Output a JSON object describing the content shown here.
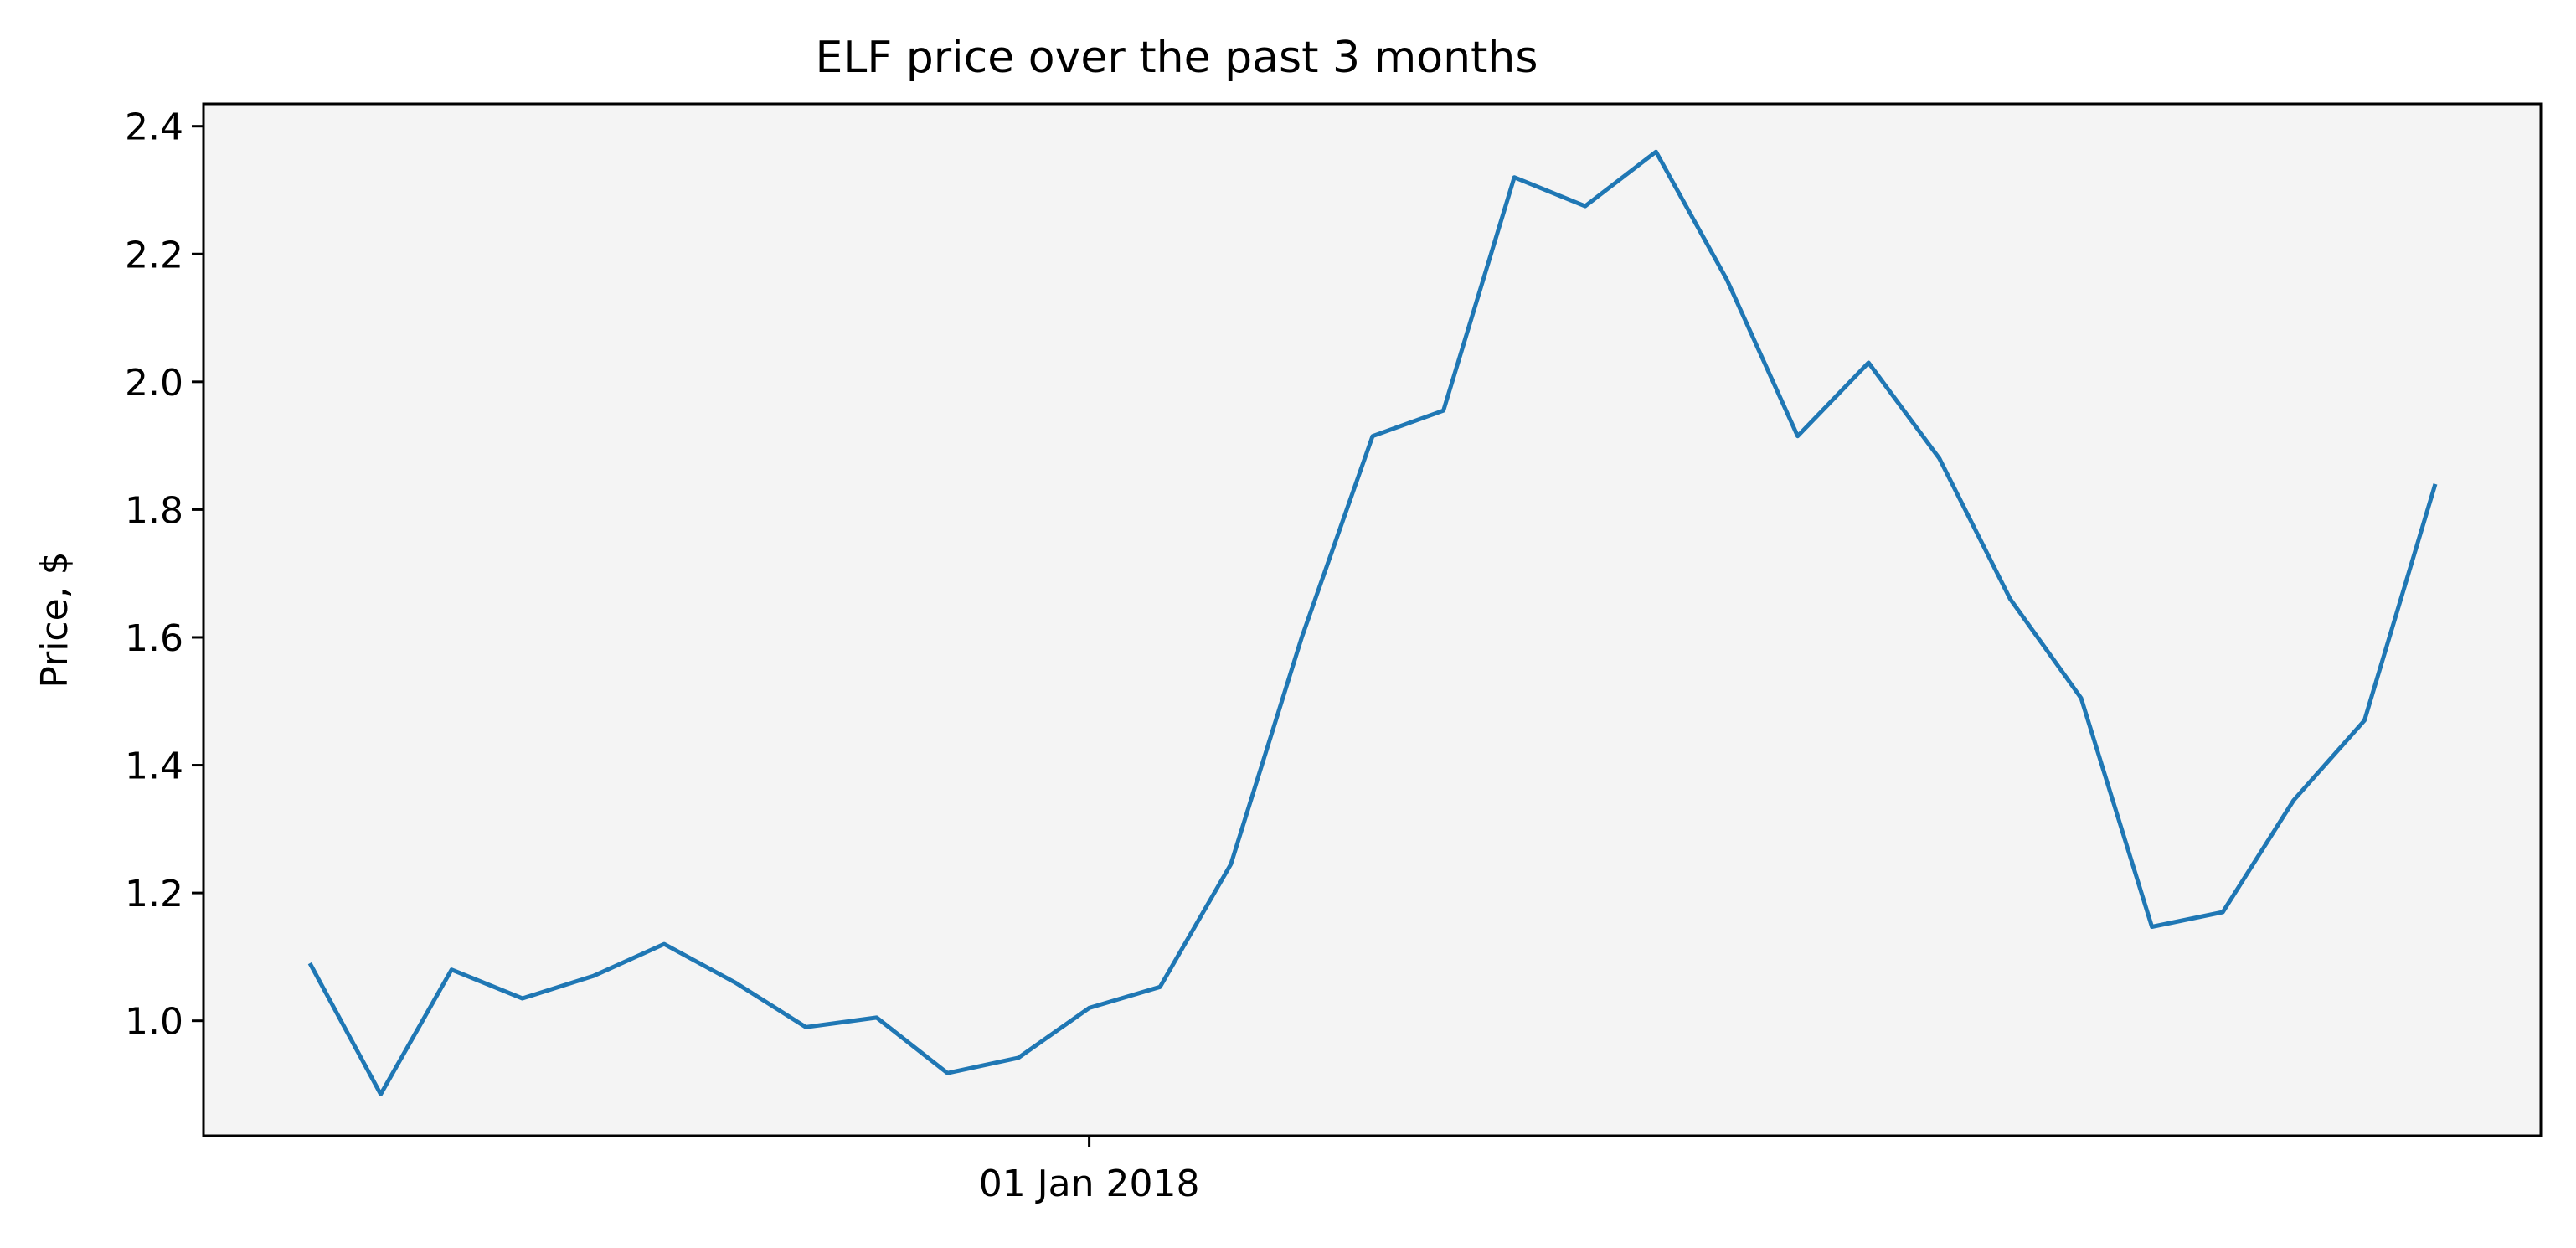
{
  "chart_data": {
    "type": "line",
    "title": "ELF price over the past 3 months",
    "xlabel": "",
    "ylabel": "Price, $",
    "x_ticks": [
      {
        "label": "01 Jan 2018",
        "index": 11
      }
    ],
    "y_ticks": [
      1.0,
      1.2,
      1.4,
      1.6,
      1.8,
      2.0,
      2.2,
      2.4
    ],
    "ylim": [
      0.82,
      2.435
    ],
    "grid": false,
    "series": [
      {
        "color": "#1f77b4",
        "values": [
          1.09,
          0.885,
          1.08,
          1.035,
          1.07,
          1.12,
          1.06,
          0.99,
          1.005,
          0.918,
          0.942,
          1.02,
          1.053,
          1.245,
          1.6,
          1.915,
          1.955,
          2.32,
          2.275,
          2.36,
          2.16,
          1.915,
          2.03,
          1.88,
          1.66,
          1.505,
          1.147,
          1.17,
          1.345,
          1.47,
          1.84
        ]
      }
    ],
    "colors": {
      "plot_background": "#f4f4f4",
      "axes": "#000000"
    }
  }
}
